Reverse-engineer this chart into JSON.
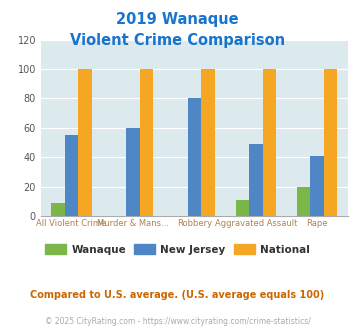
{
  "title_line1": "2019 Wanaque",
  "title_line2": "Violent Crime Comparison",
  "title_color": "#1874cd",
  "wanaque_values": [
    9,
    0,
    0,
    11,
    20
  ],
  "nj_values": [
    55,
    60,
    80,
    49,
    41
  ],
  "national_values": [
    100,
    100,
    100,
    100,
    100
  ],
  "wanaque_color": "#7ab648",
  "nj_color": "#4f86c6",
  "national_color": "#f5a623",
  "ylim": [
    0,
    120
  ],
  "yticks": [
    0,
    20,
    40,
    60,
    80,
    100,
    120
  ],
  "plot_bg": "#dce9ed",
  "legend_labels": [
    "Wanaque",
    "New Jersey",
    "National"
  ],
  "footnote": "Compared to U.S. average. (U.S. average equals 100)",
  "footnote_color": "#cc6600",
  "copyright": "© 2025 CityRating.com - https://www.cityrating.com/crime-statistics/",
  "copyright_color": "#aaaaaa",
  "grid_color": "#ffffff",
  "bar_width": 0.22,
  "line1_labels": [
    "",
    "Murder & Mans...",
    "",
    "Aggravated Assault",
    ""
  ],
  "line2_labels": [
    "All Violent Crime",
    "",
    "Robbery",
    "",
    "Rape"
  ],
  "label_color": "#b08050"
}
